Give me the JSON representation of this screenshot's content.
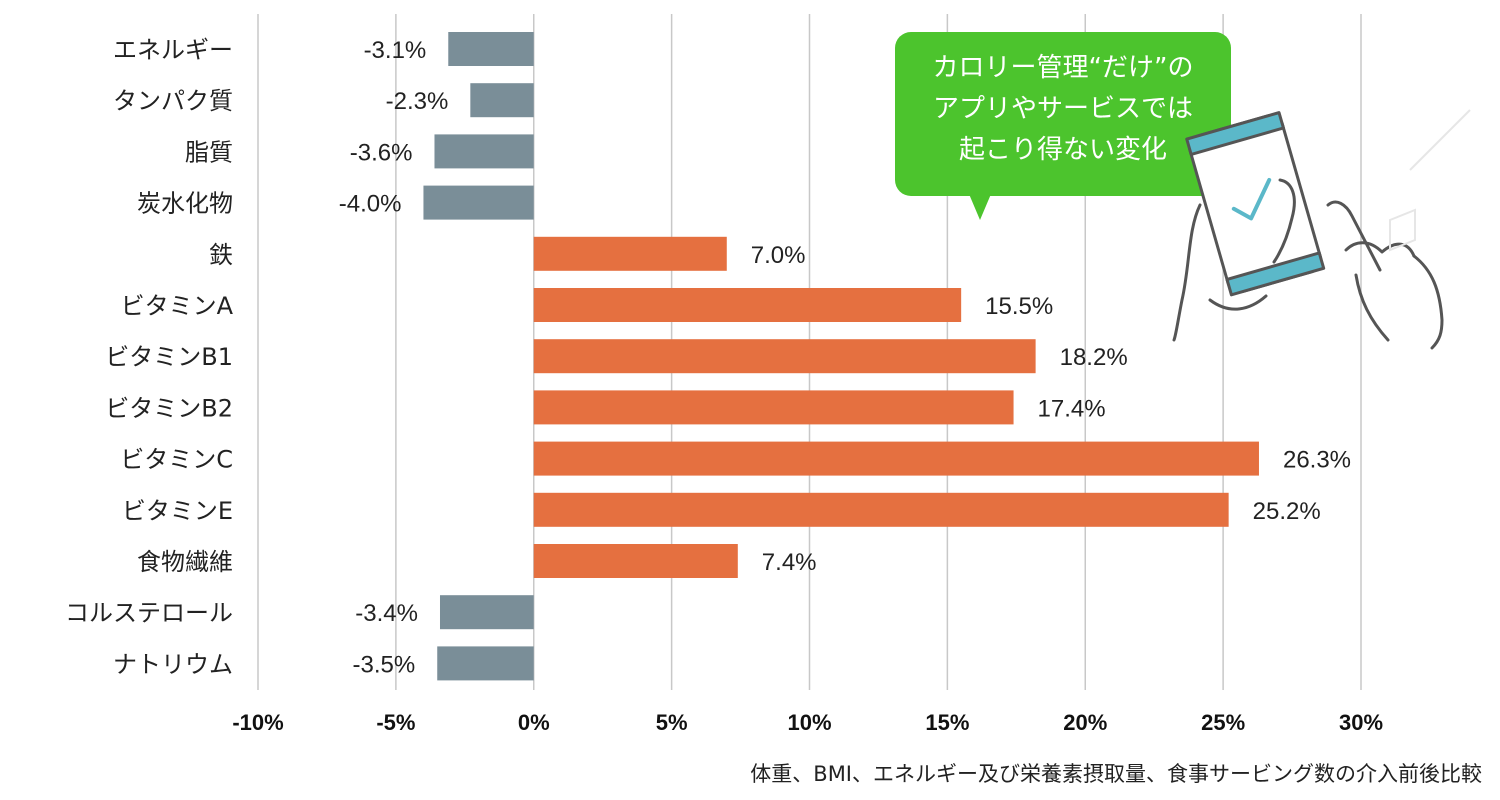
{
  "chart_data": {
    "type": "bar",
    "orientation": "horizontal",
    "categories": [
      "エネルギー",
      "タンパク質",
      "脂質",
      "炭水化物",
      "鉄",
      "ビタミンA",
      "ビタミンB1",
      "ビタミンB2",
      "ビタミンC",
      "ビタミンE",
      "食物繊維",
      "コルステロール",
      "ナトリウム"
    ],
    "values": [
      -3.1,
      -2.3,
      -3.6,
      -4.0,
      7.0,
      15.5,
      18.2,
      17.4,
      26.3,
      25.2,
      7.4,
      -3.4,
      -3.5
    ],
    "value_labels": [
      "-3.1%",
      "-2.3%",
      "-3.6%",
      "-4.0%",
      "7.0%",
      "15.5%",
      "18.2%",
      "17.4%",
      "26.3%",
      "25.2%",
      "7.4%",
      "-3.4%",
      "-3.5%"
    ],
    "xlim": [
      -10,
      30
    ],
    "xticks": [
      -10,
      -5,
      0,
      5,
      10,
      15,
      20,
      25,
      30
    ],
    "xtick_labels": [
      "-10%",
      "-5%",
      "0%",
      "5%",
      "10%",
      "15%",
      "20%",
      "25%",
      "30%"
    ],
    "grid": "vertical",
    "colors": {
      "positive": "#e57040",
      "negative": "#7a8e98",
      "grid": "#c8c8c8"
    }
  },
  "caption": "体重、BMI、エネルギー及び栄養素摂取量、食事サービング数の介入前後比較",
  "callout": {
    "lines": [
      "カロリー管理“だけ”の",
      "アプリやサービスでは",
      "起こり得ない変化"
    ],
    "color": "#4cc42d"
  },
  "illustration": {
    "icon": "smartphone-hand-check-icon",
    "accent": "#5bb8c9"
  }
}
